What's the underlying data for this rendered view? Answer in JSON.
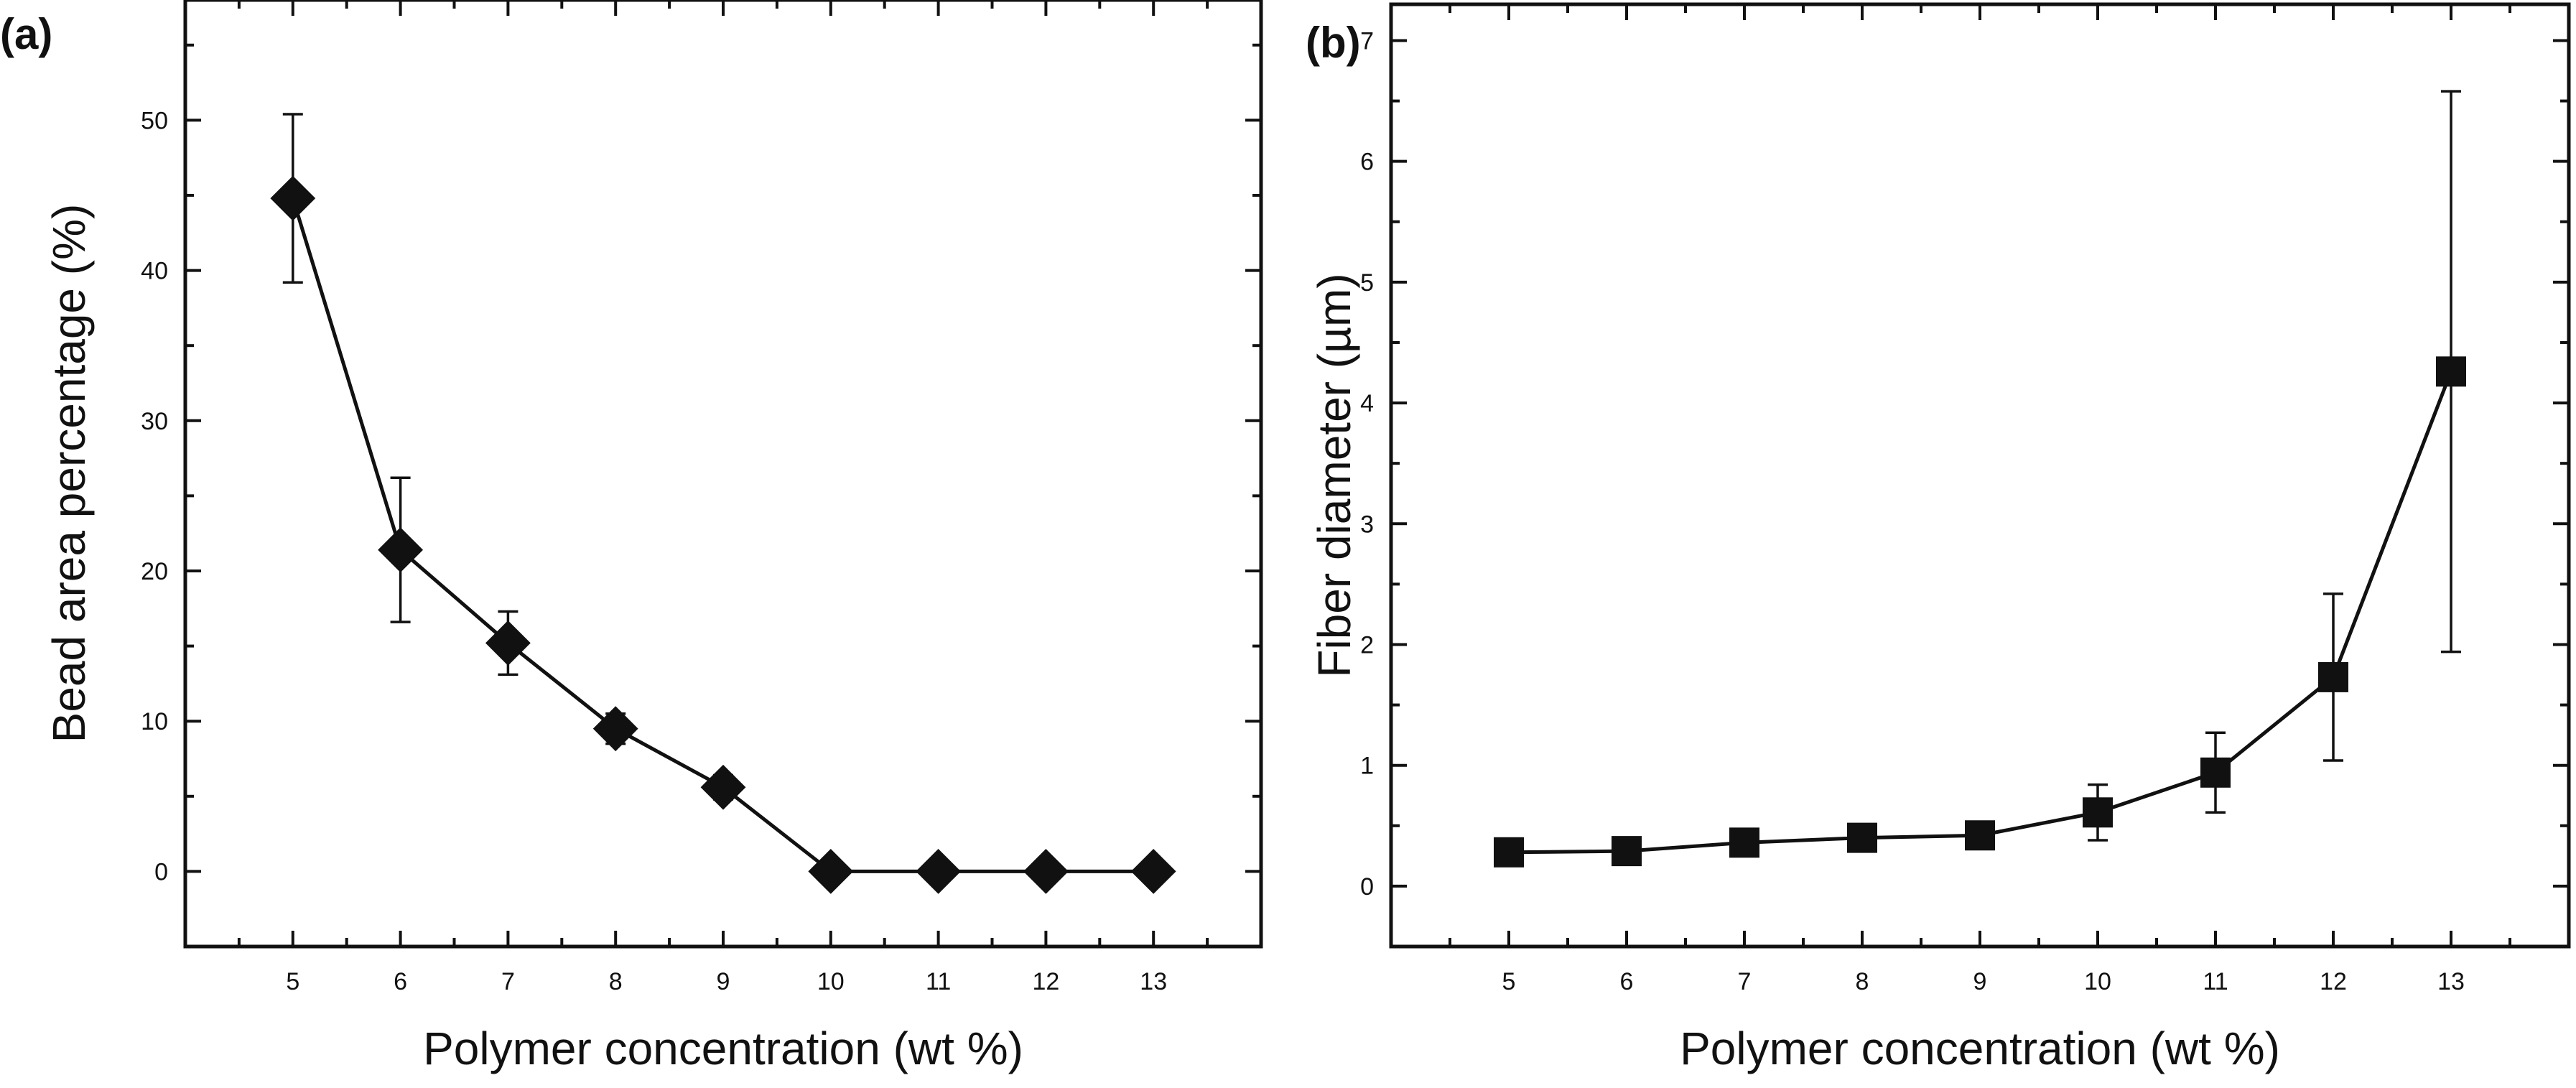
{
  "chart_data": [
    {
      "type": "line",
      "panel": "(a)",
      "title": "",
      "xlabel": "Polymer concentration (wt %)",
      "ylabel": "Bead area percentage (%)",
      "xlim": [
        4,
        14
      ],
      "ylim": [
        -5,
        58
      ],
      "xticks": [
        5,
        6,
        7,
        8,
        9,
        10,
        11,
        12,
        13
      ],
      "yticks": [
        0,
        10,
        20,
        30,
        40,
        50
      ],
      "grid": false,
      "marker": "diamond",
      "series": [
        {
          "name": "Bead area percentage",
          "x": [
            5,
            6,
            7,
            8,
            9,
            10,
            11,
            12,
            13
          ],
          "values": [
            44.8,
            21.4,
            15.2,
            9.5,
            5.6,
            0,
            0,
            0,
            0
          ],
          "err_high": [
            50.4,
            26.2,
            17.3,
            10.5,
            6.4,
            0,
            0,
            0,
            0
          ],
          "err_low": [
            39.2,
            16.6,
            13.1,
            8.5,
            4.8,
            0,
            0,
            0,
            0
          ]
        }
      ]
    },
    {
      "type": "line",
      "panel": "(b)",
      "title": "",
      "xlabel": "Polymer concentration (wt %)",
      "ylabel": "Fiber diameter (µm)",
      "xlim": [
        4,
        14
      ],
      "ylim": [
        -0.5,
        7.3
      ],
      "xticks": [
        5,
        6,
        7,
        8,
        9,
        10,
        11,
        12,
        13
      ],
      "yticks": [
        0,
        1,
        2,
        3,
        4,
        5,
        6,
        7
      ],
      "grid": false,
      "marker": "square",
      "series": [
        {
          "name": "Fiber diameter",
          "x": [
            5,
            6,
            7,
            8,
            9,
            10,
            11,
            12,
            13
          ],
          "values": [
            0.28,
            0.29,
            0.36,
            0.4,
            0.42,
            0.61,
            0.94,
            1.73,
            4.26
          ],
          "err_high": [
            0.33,
            0.34,
            0.42,
            0.48,
            0.5,
            0.84,
            1.27,
            2.42,
            6.58
          ],
          "err_low": [
            0.23,
            0.24,
            0.3,
            0.32,
            0.34,
            0.38,
            0.61,
            1.04,
            1.94
          ]
        }
      ]
    }
  ]
}
